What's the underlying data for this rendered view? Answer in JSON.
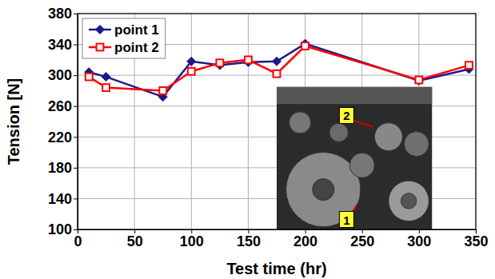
{
  "chart_data": {
    "type": "line",
    "x_label": "Test time (hr)",
    "y_label": "Tension [N]",
    "x": [
      10,
      25,
      75,
      100,
      125,
      150,
      175,
      200,
      300,
      344
    ],
    "series": [
      {
        "name": "point 1",
        "color": "#1a1a8c",
        "marker": "diamond",
        "line_style": "solid",
        "values": [
          304,
          298,
          272,
          318,
          313,
          317,
          318,
          341,
          293,
          308
        ]
      },
      {
        "name": "point 2",
        "color": "#ff0000",
        "marker": "square",
        "line_style": "solid",
        "values": [
          298,
          284,
          280,
          305,
          316,
          320,
          302,
          338,
          294,
          313
        ]
      }
    ],
    "xlim": [
      0,
      350
    ],
    "xticks": [
      0,
      50,
      100,
      150,
      200,
      250,
      300,
      350
    ],
    "ylim": [
      100,
      380
    ],
    "yticks": [
      100,
      140,
      180,
      220,
      260,
      300,
      340,
      380
    ],
    "grid": true,
    "legend": "upper left",
    "annotations": [
      {
        "text": "1"
      },
      {
        "text": "2"
      }
    ]
  }
}
